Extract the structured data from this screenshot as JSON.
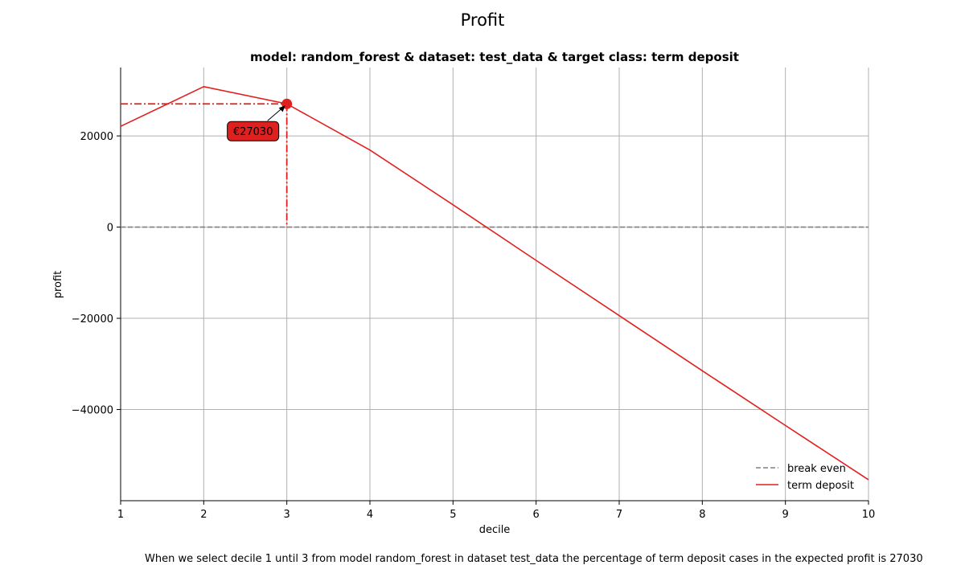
{
  "chart_data": {
    "type": "line",
    "suptitle": "Profit",
    "title": "model: random_forest & dataset: test_data & target class: term deposit",
    "xlabel": "decile",
    "ylabel": "profit",
    "xlim": [
      1,
      10
    ],
    "ylim": [
      -60000,
      35000
    ],
    "x_ticks": [
      1,
      2,
      3,
      4,
      5,
      6,
      7,
      8,
      9,
      10
    ],
    "x_tick_labels": [
      "1",
      "2",
      "3",
      "4",
      "5",
      "6",
      "7",
      "8",
      "9",
      "10"
    ],
    "y_ticks": [
      -40000,
      -20000,
      0,
      20000
    ],
    "y_tick_labels": [
      "−40000",
      "−20000",
      "0",
      "20000"
    ],
    "grid": true,
    "legend_position": "lower-right",
    "series": [
      {
        "name": "break even",
        "color": "#808080",
        "style": "dashed",
        "x": [
          1,
          10
        ],
        "y": [
          0,
          0
        ]
      },
      {
        "name": "term deposit",
        "color": "#e0201f",
        "style": "solid",
        "x": [
          1,
          2,
          3,
          4,
          5,
          6,
          7,
          8,
          9,
          10
        ],
        "y": [
          22100,
          30800,
          27030,
          16900,
          4900,
          -7300,
          -19400,
          -31500,
          -43500,
          -55400
        ]
      }
    ],
    "highlight": {
      "x": 3,
      "y": 27030,
      "label": "€27030",
      "color": "#e0201f"
    },
    "caption": "When we select decile 1 until 3 from model random_forest in dataset test_data the percentage of term deposit cases in the expected profit is 27030"
  }
}
